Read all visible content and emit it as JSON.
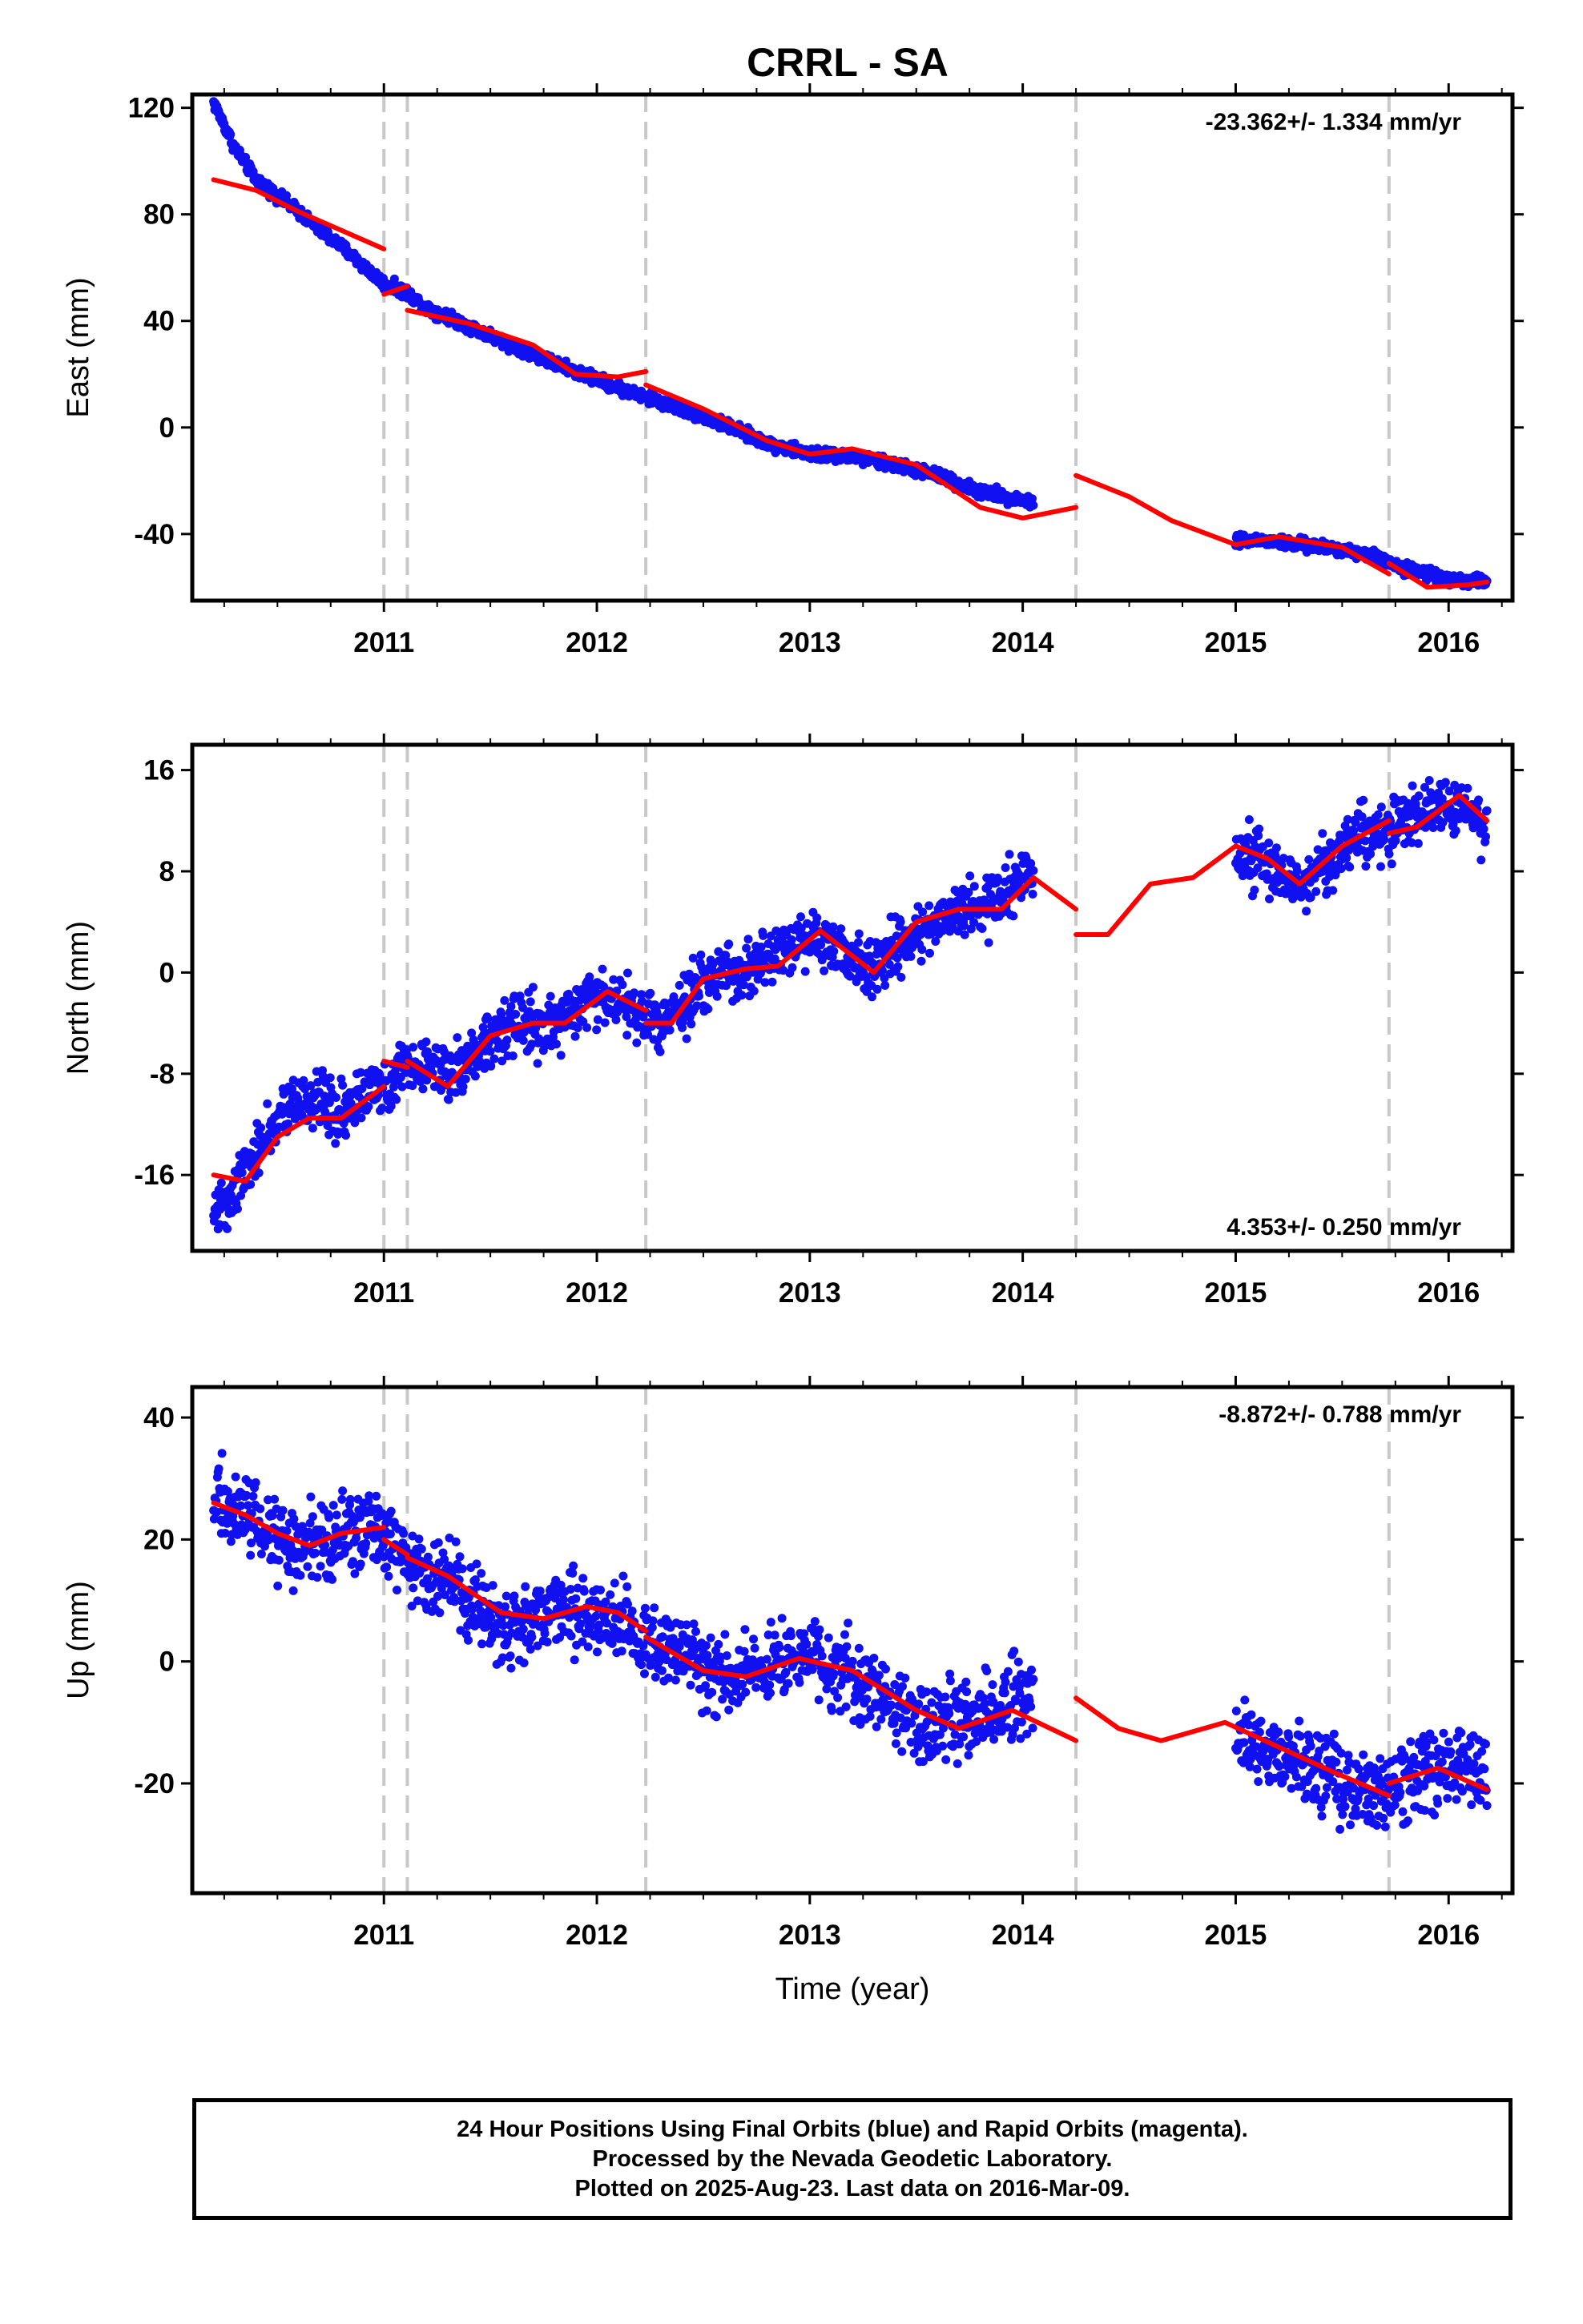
{
  "title": "CRRL - SA",
  "colors": {
    "data": "#1010f0",
    "model": "#ff0000",
    "steps": "#c8c8c8",
    "frame": "#000000"
  },
  "chart_data": [
    {
      "type": "scatter",
      "component": "east",
      "ylabel": "East (mm)",
      "xlim": [
        2010.1,
        2016.3
      ],
      "ylim": [
        -65,
        125
      ],
      "yticks": [
        -40,
        0,
        40,
        80,
        120
      ],
      "xticks": [
        2011,
        2012,
        2013,
        2014,
        2015,
        2016
      ],
      "rate_label": "-23.362+/- 1.334 mm/yr",
      "rate_position": "top-right",
      "steps": [
        2011.0,
        2011.11,
        2012.23,
        2014.25,
        2015.72
      ],
      "data_segments": [
        {
          "x": [
            2010.2,
            2010.3,
            2010.4,
            2010.5,
            2010.6,
            2010.7,
            2010.8,
            2010.9,
            2011.0,
            2011.1,
            2011.2,
            2011.4,
            2011.6,
            2011.8,
            2012.0,
            2012.2,
            2012.4,
            2012.6,
            2012.8,
            2013.0,
            2013.2,
            2013.4,
            2013.6,
            2013.8,
            2014.05
          ],
          "y": [
            122,
            105,
            93,
            87,
            81,
            74,
            68,
            61,
            54,
            51,
            45,
            38,
            31,
            24,
            18,
            12,
            7,
            1,
            -6,
            -10,
            -11,
            -14,
            -18,
            -24,
            -28
          ]
        },
        {
          "x": [
            2015.0,
            2015.2,
            2015.4,
            2015.6,
            2015.8,
            2016.0,
            2016.18
          ],
          "y": [
            -42,
            -43,
            -45,
            -47,
            -53,
            -57,
            -58
          ]
        }
      ],
      "model": [
        {
          "x": [
            2010.2,
            2010.4,
            2010.6,
            2010.8,
            2011.0
          ],
          "y": [
            93,
            89,
            81,
            74,
            67
          ]
        },
        {
          "x": [
            2011.0,
            2011.11
          ],
          "y": [
            50,
            53
          ]
        },
        {
          "x": [
            2011.11,
            2011.4,
            2011.7,
            2011.9,
            2012.1,
            2012.23
          ],
          "y": [
            44,
            39,
            31,
            20,
            19,
            21
          ]
        },
        {
          "x": [
            2012.23,
            2012.5,
            2012.8,
            2013.0,
            2013.2,
            2013.5,
            2013.8,
            2014.0,
            2014.25
          ],
          "y": [
            16,
            7,
            -5,
            -10,
            -8,
            -14,
            -30,
            -34,
            -30
          ]
        },
        {
          "x": [
            2014.25,
            2014.5,
            2014.7,
            2015.0,
            2015.2,
            2015.5,
            2015.72
          ],
          "y": [
            -18,
            -26,
            -35,
            -44,
            -41,
            -45,
            -55
          ]
        },
        {
          "x": [
            2015.72,
            2015.9,
            2016.1,
            2016.18
          ],
          "y": [
            -51,
            -60,
            -59,
            -58
          ]
        }
      ]
    },
    {
      "type": "scatter",
      "component": "north",
      "ylabel": "North (mm)",
      "xlim": [
        2010.1,
        2016.3
      ],
      "ylim": [
        -22,
        18
      ],
      "yticks": [
        -16,
        -8,
        0,
        8,
        16
      ],
      "xticks": [
        2011,
        2012,
        2013,
        2014,
        2015,
        2016
      ],
      "rate_label": "4.353+/- 0.250 mm/yr",
      "rate_position": "bottom-right",
      "steps": [
        2011.0,
        2011.11,
        2012.23,
        2014.25,
        2015.72
      ],
      "data_segments": [
        {
          "x": [
            2010.2,
            2010.3,
            2010.4,
            2010.5,
            2010.6,
            2010.7,
            2010.8,
            2010.9,
            2011.0,
            2011.1,
            2011.2,
            2011.3,
            2011.4,
            2011.5,
            2011.6,
            2011.7,
            2011.8,
            2011.9,
            2012.0,
            2012.1,
            2012.2,
            2012.3,
            2012.4,
            2012.5,
            2012.6,
            2012.7,
            2012.8,
            2012.9,
            2013.0,
            2013.1,
            2013.2,
            2013.3,
            2013.4,
            2013.5,
            2013.6,
            2013.7,
            2013.8,
            2013.9,
            2014.05
          ],
          "y": [
            -19,
            -17,
            -14,
            -12,
            -10,
            -10,
            -11,
            -10,
            -9,
            -7,
            -7,
            -8,
            -7,
            -5,
            -4,
            -4,
            -4,
            -3,
            -2,
            -2,
            -3,
            -4,
            -3,
            -1,
            0,
            0,
            1,
            2,
            3,
            2,
            1,
            0,
            2,
            3,
            4,
            5,
            5,
            6,
            8
          ]
        },
        {
          "x": [
            2015.0,
            2015.1,
            2015.2,
            2015.3,
            2015.4,
            2015.5,
            2015.6,
            2015.7,
            2015.8,
            2015.9,
            2016.0,
            2016.1,
            2016.18
          ],
          "y": [
            9,
            9,
            8,
            7,
            8,
            10,
            11,
            11,
            12,
            13,
            13,
            13,
            11
          ]
        }
      ],
      "model": [
        {
          "x": [
            2010.2,
            2010.35,
            2010.5,
            2010.65,
            2010.8,
            2011.0
          ],
          "y": [
            -16,
            -16.5,
            -13,
            -11.5,
            -11.5,
            -9
          ]
        },
        {
          "x": [
            2011.0,
            2011.11
          ],
          "y": [
            -7,
            -7.5
          ]
        },
        {
          "x": [
            2011.11,
            2011.3,
            2011.5,
            2011.7,
            2011.85,
            2012.05,
            2012.23
          ],
          "y": [
            -7,
            -9,
            -5,
            -4,
            -4,
            -1.5,
            -3
          ]
        },
        {
          "x": [
            2012.23,
            2012.35,
            2012.5,
            2012.7,
            2012.85,
            2013.05,
            2013.3,
            2013.5,
            2013.7,
            2013.9,
            2014.05,
            2014.25
          ],
          "y": [
            -4,
            -4,
            -0.5,
            0.3,
            0.5,
            3.3,
            0,
            4,
            5,
            5,
            7.5,
            5
          ]
        },
        {
          "x": [
            2014.25,
            2014.4,
            2014.6,
            2014.8,
            2015.0,
            2015.15,
            2015.3,
            2015.5,
            2015.72
          ],
          "y": [
            3,
            3,
            7,
            7.5,
            10,
            9,
            7,
            10,
            12
          ]
        },
        {
          "x": [
            2015.72,
            2015.85,
            2016.05,
            2016.18
          ],
          "y": [
            11,
            11.5,
            14,
            12
          ]
        }
      ]
    },
    {
      "type": "scatter",
      "component": "up",
      "ylabel": "Up (mm)",
      "xlim": [
        2010.1,
        2016.3
      ],
      "ylim": [
        -38,
        45
      ],
      "yticks": [
        -20,
        0,
        20,
        40
      ],
      "xticks": [
        2011,
        2012,
        2013,
        2014,
        2015,
        2016
      ],
      "xlabel": "Time (year)",
      "rate_label": "-8.872+/- 0.788 mm/yr",
      "rate_position": "top-right",
      "steps": [
        2011.0,
        2011.11,
        2012.23,
        2014.25,
        2015.72
      ],
      "data_segments": [
        {
          "x": [
            2010.2,
            2010.3,
            2010.4,
            2010.5,
            2010.6,
            2010.7,
            2010.8,
            2010.9,
            2011.0,
            2011.1,
            2011.2,
            2011.3,
            2011.4,
            2011.5,
            2011.6,
            2011.7,
            2011.8,
            2011.9,
            2012.0,
            2012.1,
            2012.2,
            2012.3,
            2012.4,
            2012.5,
            2012.6,
            2012.7,
            2012.8,
            2012.9,
            2013.0,
            2013.1,
            2013.2,
            2013.3,
            2013.4,
            2013.5,
            2013.6,
            2013.7,
            2013.8,
            2013.9,
            2014.05
          ],
          "y": [
            27,
            25,
            23,
            20,
            19,
            20,
            21,
            22,
            21,
            17,
            15,
            13,
            10,
            8,
            6,
            7,
            9,
            9,
            8,
            6,
            4,
            3,
            1,
            -1,
            -2,
            -2,
            -1,
            0,
            1,
            -1,
            -3,
            -5,
            -7,
            -9,
            -11,
            -10,
            -9,
            -7,
            -5
          ]
        },
        {
          "x": [
            2015.0,
            2015.1,
            2015.2,
            2015.3,
            2015.4,
            2015.5,
            2015.6,
            2015.7,
            2015.8,
            2015.9,
            2016.0,
            2016.1,
            2016.18
          ],
          "y": [
            -12,
            -14,
            -15,
            -17,
            -18,
            -20,
            -21,
            -21,
            -20,
            -18,
            -17,
            -18,
            -20
          ]
        }
      ],
      "model": [
        {
          "x": [
            2010.2,
            2010.35,
            2010.5,
            2010.65,
            2010.8,
            2011.0
          ],
          "y": [
            26,
            24,
            21,
            19,
            21,
            22
          ]
        },
        {
          "x": [
            2011.0,
            2011.11
          ],
          "y": [
            20,
            17.5
          ]
        },
        {
          "x": [
            2011.11,
            2011.3,
            2011.55,
            2011.75,
            2011.95,
            2012.1,
            2012.23
          ],
          "y": [
            17,
            14,
            8,
            7,
            9,
            8,
            5
          ]
        },
        {
          "x": [
            2012.23,
            2012.5,
            2012.7,
            2012.95,
            2013.2,
            2013.5,
            2013.7,
            2013.95,
            2014.25
          ],
          "y": [
            4,
            -1.5,
            -2.5,
            0.5,
            -1.5,
            -8,
            -11,
            -8,
            -13
          ]
        },
        {
          "x": [
            2014.25,
            2014.45,
            2014.65,
            2014.95,
            2015.2,
            2015.45,
            2015.72
          ],
          "y": [
            -6,
            -11,
            -13,
            -10,
            -14,
            -18,
            -22
          ]
        },
        {
          "x": [
            2015.72,
            2015.95,
            2016.18
          ],
          "y": [
            -20,
            -17.5,
            -21
          ]
        }
      ]
    }
  ],
  "caption": {
    "line1": "24 Hour Positions Using Final Orbits (blue) and Rapid Orbits (magenta).",
    "line2": "Processed by the Nevada Geodetic Laboratory.",
    "line3": "Plotted on 2025-Aug-23. Last data on 2016-Mar-09."
  }
}
